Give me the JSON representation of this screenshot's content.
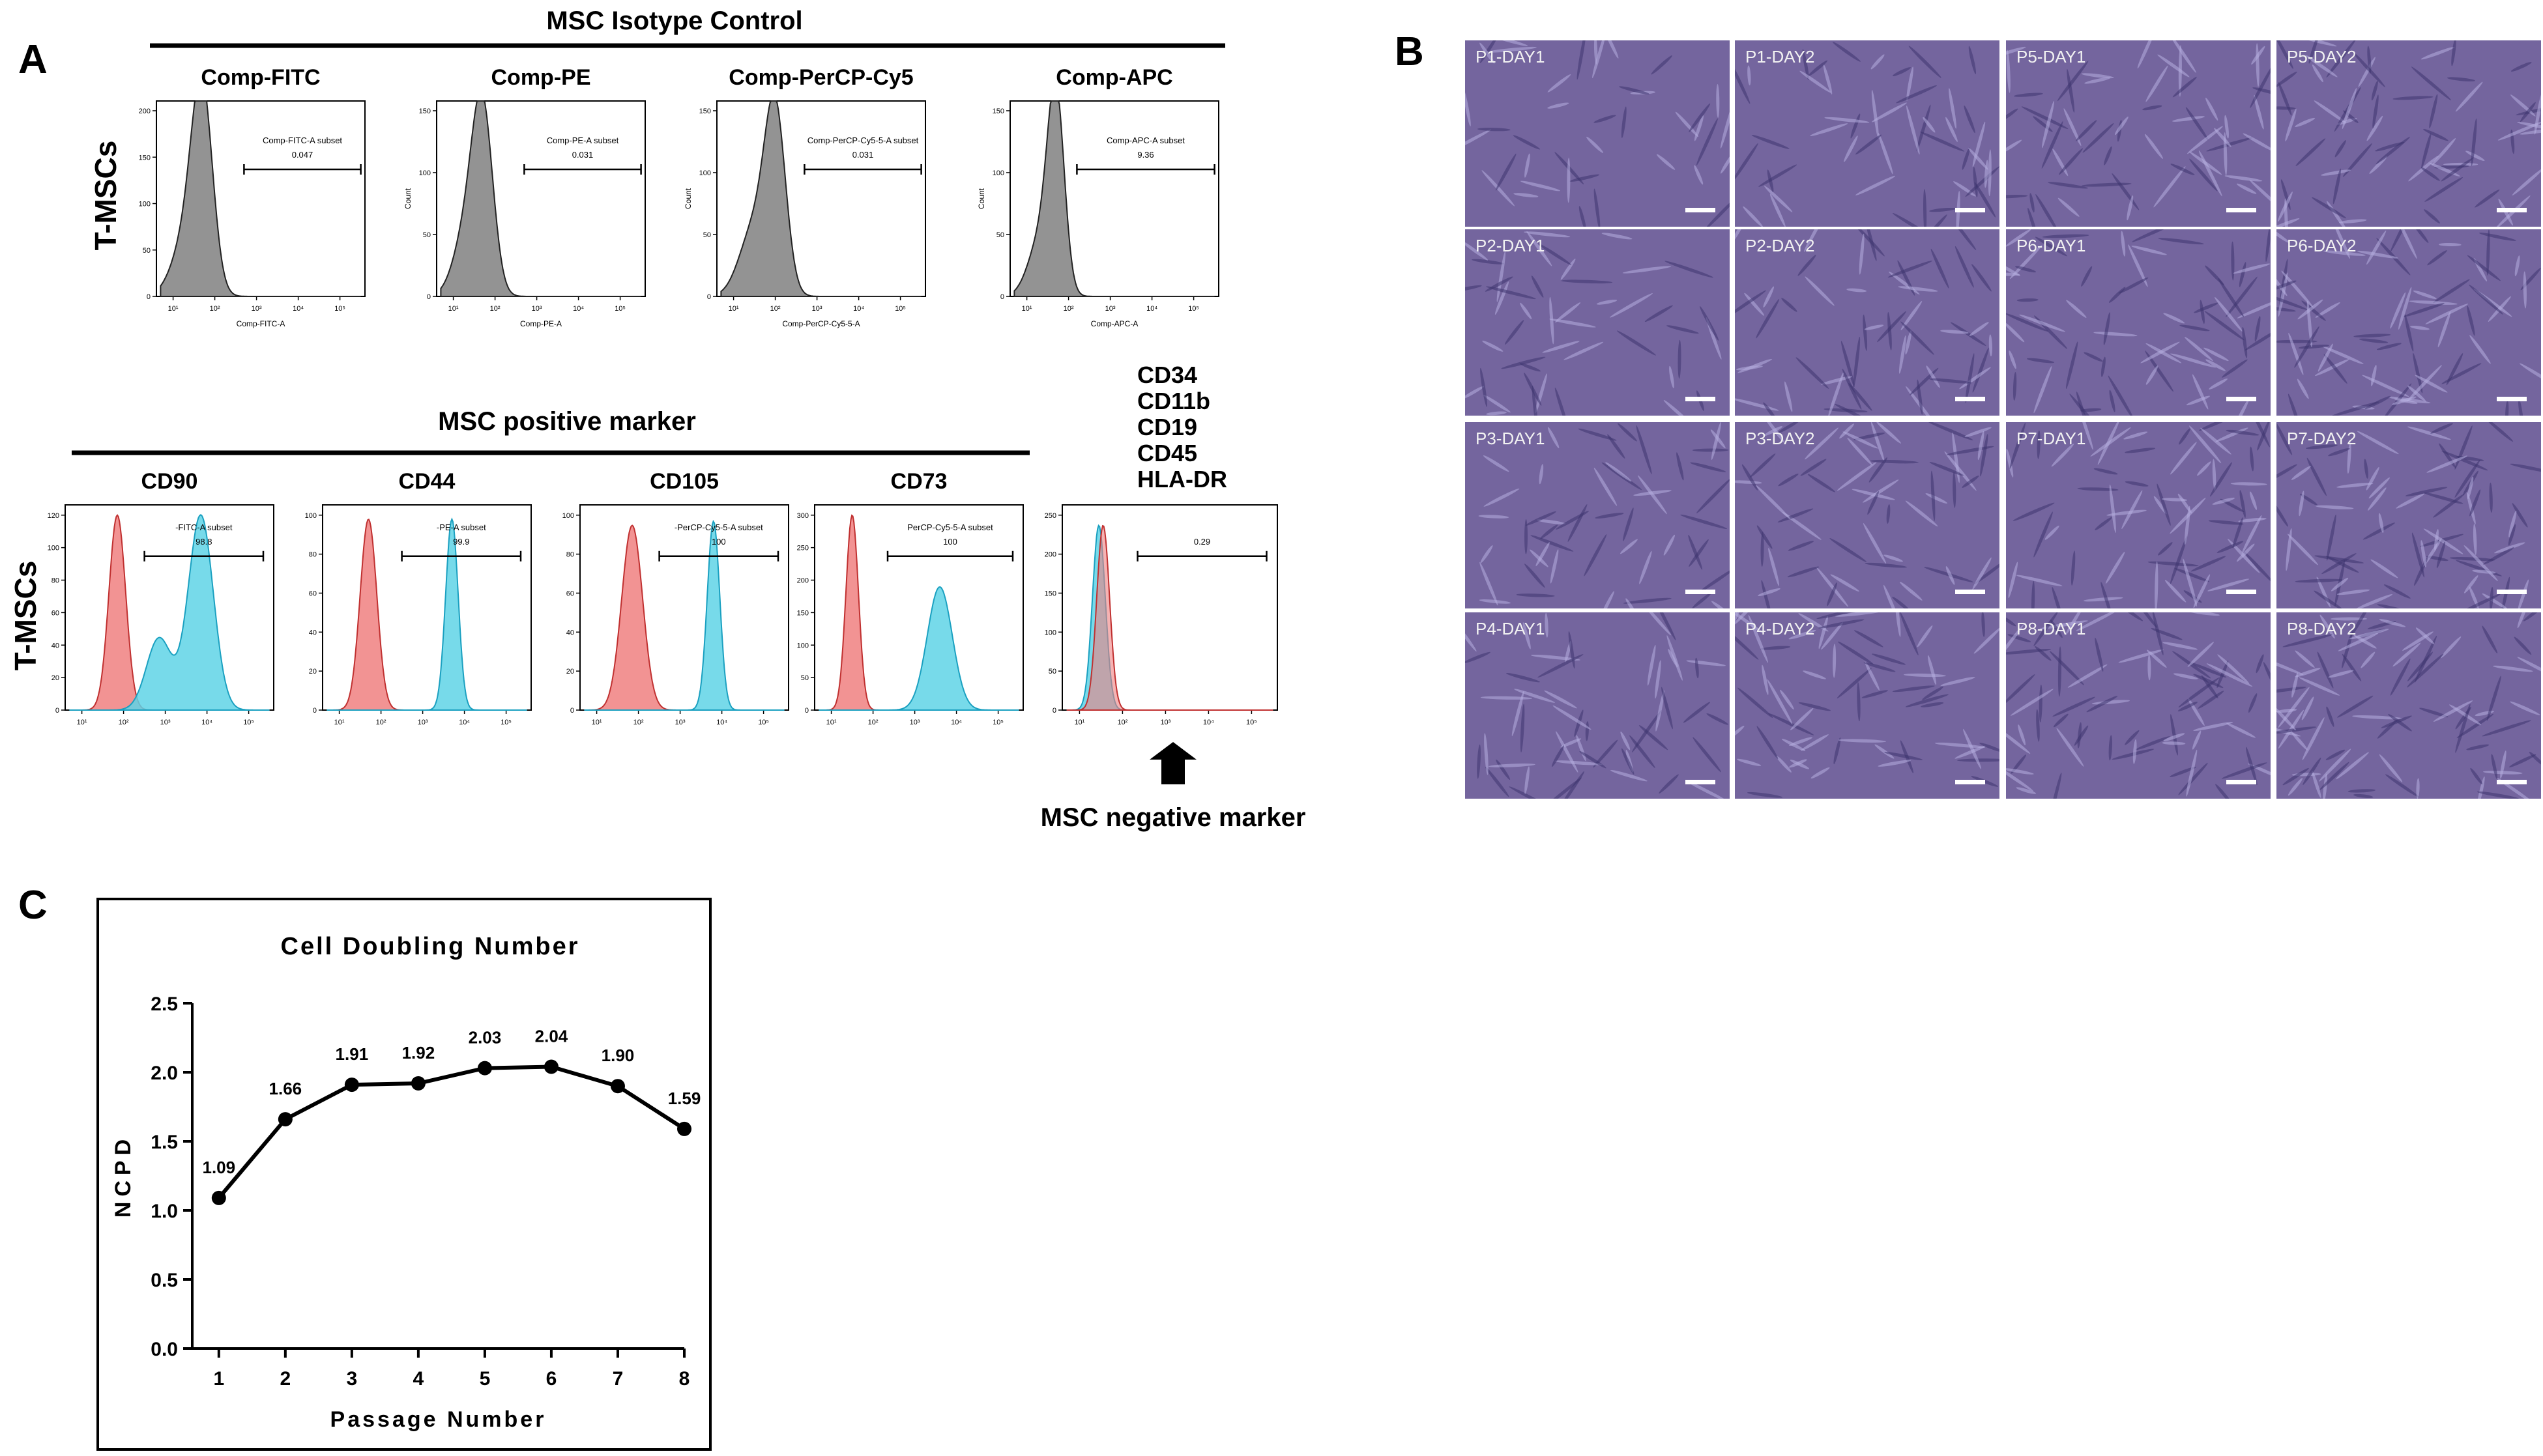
{
  "panel_letters": {
    "a": "A",
    "b": "B",
    "c": "C"
  },
  "panel_a": {
    "isotype_title": "MSC Isotype Control",
    "positive_title": "MSC positive marker",
    "negative_title": "MSC negative marker",
    "row_label": "T-MSCs",
    "negative_markers": [
      "CD34",
      "CD11b",
      "CD19",
      "CD45",
      "HLA-DR"
    ],
    "isotype_plots": [
      {
        "title": "Comp-FITC",
        "xlabel": "Comp-FITC-A",
        "ylabel": "",
        "gate_label": "Comp-FITC-A subset",
        "gate_value": "0.047",
        "yticks": [
          "0",
          "50",
          "100",
          "150",
          "200"
        ]
      },
      {
        "title": "Comp-PE",
        "xlabel": "Comp-PE-A",
        "ylabel": "Count",
        "gate_label": "Comp-PE-A subset",
        "gate_value": "0.031",
        "yticks": [
          "0",
          "50",
          "100",
          "150"
        ]
      },
      {
        "title": "Comp-PerCP-Cy5",
        "xlabel": "Comp-PerCP-Cy5-5-A",
        "ylabel": "Count",
        "gate_label": "Comp-PerCP-Cy5-5-A subset",
        "gate_value": "0.031",
        "yticks": [
          "0",
          "50",
          "100",
          "150"
        ]
      },
      {
        "title": "Comp-APC",
        "xlabel": "Comp-APC-A",
        "ylabel": "Count",
        "gate_label": "Comp-APC-A subset",
        "gate_value": "9.36",
        "yticks": [
          "0",
          "50",
          "100",
          "150"
        ]
      }
    ],
    "positive_plots": [
      {
        "title": "CD90",
        "gate_label": "-FITC-A subset",
        "gate_value": "98.8",
        "yticks": [
          "0",
          "20",
          "40",
          "60",
          "80",
          "100",
          "120"
        ]
      },
      {
        "title": "CD44",
        "gate_label": "-PE-A subset",
        "gate_value": "99.9",
        "yticks": [
          "0",
          "20",
          "40",
          "60",
          "80",
          "100"
        ]
      },
      {
        "title": "CD105",
        "gate_label": "-PerCP-Cy5-5-A subset",
        "gate_value": "100",
        "yticks": [
          "0",
          "20",
          "40",
          "60",
          "80",
          "100"
        ]
      },
      {
        "title": "CD73",
        "gate_label": "PerCP-Cy5-5-A subset",
        "gate_value": "100",
        "yticks": [
          "0",
          "50",
          "100",
          "150",
          "200",
          "250",
          "300"
        ]
      }
    ],
    "negative_plot": {
      "gate_value": "0.29",
      "yticks": [
        "0",
        "50",
        "100",
        "150",
        "200",
        "250"
      ]
    }
  },
  "panel_b": {
    "rows": [
      [
        "P1-DAY1",
        "P1-DAY2",
        "P5-DAY1",
        "P5-DAY2"
      ],
      [
        "P2-DAY1",
        "P2-DAY2",
        "P6-DAY1",
        "P6-DAY2"
      ],
      [
        "P3-DAY1",
        "P3-DAY2",
        "P7-DAY1",
        "P7-DAY2"
      ],
      [
        "P4-DAY1",
        "P4-DAY2",
        "P8-DAY1",
        "P8-DAY2"
      ]
    ]
  },
  "chart_data": {
    "type": "line",
    "title": "Cell Doubling Number",
    "xlabel": "Passage Number",
    "ylabel": "NCPD",
    "x": [
      1,
      2,
      3,
      4,
      5,
      6,
      7,
      8
    ],
    "series": [
      {
        "values": [
          1.09,
          1.66,
          1.91,
          1.92,
          2.03,
          2.04,
          1.9,
          1.59
        ]
      }
    ],
    "data_labels": [
      "1.09",
      "1.66",
      "1.91",
      "1.92",
      "2.03",
      "2.04",
      "1.90",
      "1.59"
    ],
    "ylim": [
      0.0,
      2.5
    ],
    "yticks": [
      "0.0",
      "0.5",
      "1.0",
      "1.5",
      "2.0",
      "2.5"
    ],
    "xticks": [
      "1",
      "2",
      "3",
      "4",
      "5",
      "6",
      "7",
      "8"
    ],
    "grid": false,
    "marker_color": "#000000"
  },
  "colors": {
    "isotype_fill": "#808080",
    "unstained_fill": "#f08080",
    "stained_fill": "#5fd4e6",
    "micro_bg": "#74659e"
  }
}
